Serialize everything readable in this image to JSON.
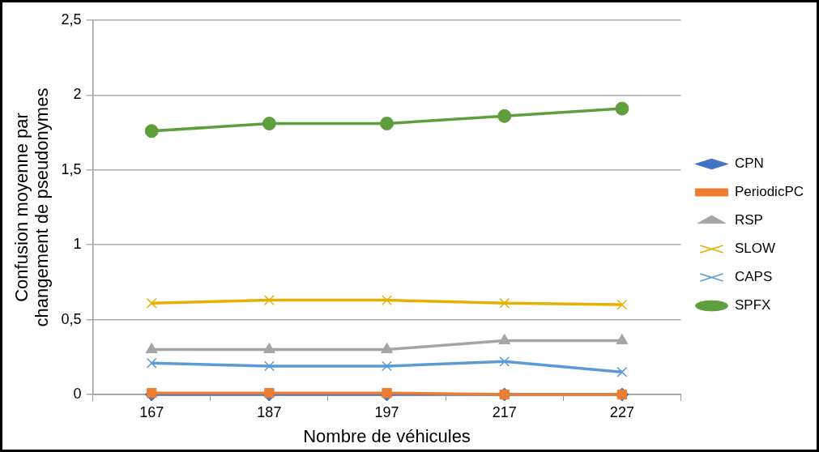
{
  "chart_data": {
    "type": "line",
    "xlabel": "Nombre de véhicules",
    "ylabel": "Confusion moyenne par changement de pseudonymes",
    "categories": [
      "167",
      "187",
      "197",
      "217",
      "227"
    ],
    "ylim": [
      0,
      2.5
    ],
    "yticks": [
      0,
      {
        "value": 0.5,
        "label": "0,5"
      },
      1,
      {
        "value": 1.5,
        "label": "1,5"
      },
      2,
      {
        "value": 2.5,
        "label": "2,5"
      }
    ],
    "grid": "y",
    "legend": "right",
    "series": [
      {
        "name": "CPN",
        "color": "#4472c4",
        "marker": "diamond",
        "values": [
          0,
          0,
          0,
          0,
          0
        ]
      },
      {
        "name": "PeriodicPC",
        "color": "#ed7d31",
        "marker": "square",
        "values": [
          0.01,
          0.01,
          0.01,
          0,
          0
        ]
      },
      {
        "name": "RSP",
        "color": "#a5a5a5",
        "marker": "triangle",
        "values": [
          0.3,
          0.3,
          0.3,
          0.36,
          0.36
        ]
      },
      {
        "name": "SLOW",
        "color": "#e5b000",
        "marker": "cross",
        "values": [
          0.61,
          0.63,
          0.63,
          0.61,
          0.6
        ]
      },
      {
        "name": "CAPS",
        "color": "#5b9bd5",
        "marker": "cross",
        "values": [
          0.21,
          0.19,
          0.19,
          0.22,
          0.15
        ]
      },
      {
        "name": "SPFX",
        "color": "#5f9e3c",
        "marker": "circle",
        "values": [
          1.76,
          1.81,
          1.81,
          1.86,
          1.91
        ]
      }
    ]
  }
}
